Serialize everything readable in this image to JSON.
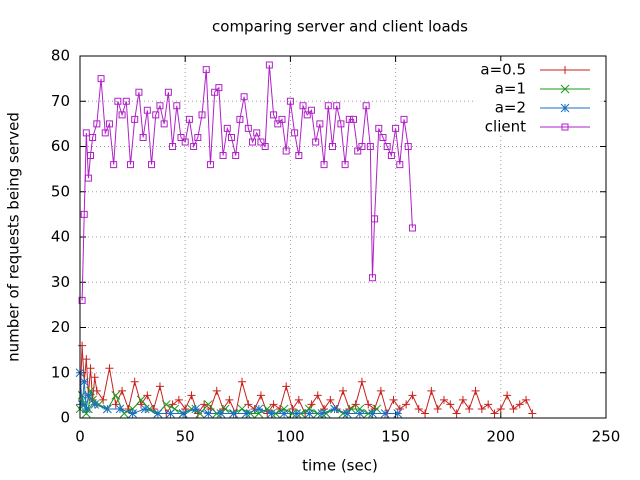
{
  "chart_data": {
    "type": "line",
    "title": "comparing server and client loads",
    "x_label": "time (sec)",
    "y_label": "number of requests being served",
    "xlim": [
      0,
      250
    ],
    "ylim": [
      0,
      80
    ],
    "xticks": [
      0,
      50,
      100,
      150,
      200,
      250
    ],
    "yticks": [
      0,
      10,
      20,
      30,
      40,
      50,
      60,
      70,
      80
    ],
    "grid": true,
    "legend": "top-right",
    "series": [
      {
        "name": "a=0.5",
        "color": "#c8201c",
        "marker": "plus",
        "x": [
          0,
          1,
          2,
          3,
          4,
          5,
          6,
          7,
          8,
          11,
          14,
          17,
          20,
          23,
          26,
          29,
          32,
          35,
          38,
          41,
          44,
          47,
          50,
          53,
          56,
          59,
          62,
          65,
          68,
          71,
          74,
          77,
          80,
          83,
          86,
          89,
          92,
          95,
          98,
          101,
          104,
          107,
          110,
          113,
          116,
          119,
          122,
          125,
          128,
          131,
          134,
          137,
          140,
          143,
          146,
          149,
          152,
          155,
          158,
          161,
          164,
          167,
          170,
          173,
          176,
          179,
          182,
          185,
          188,
          191,
          194,
          197,
          200,
          203,
          206,
          209,
          212,
          215
        ],
        "values": [
          3,
          16,
          8,
          13,
          5,
          11,
          4,
          9,
          6,
          4,
          11,
          3,
          6,
          2,
          8,
          3,
          5,
          2,
          7,
          1,
          3,
          4,
          2,
          5,
          1,
          3,
          2,
          6,
          2,
          4,
          1,
          8,
          3,
          2,
          5,
          1,
          3,
          2,
          7,
          2,
          4,
          1,
          3,
          5,
          2,
          4,
          2,
          6,
          2,
          3,
          8,
          3,
          2,
          6,
          1,
          4,
          2,
          3,
          5,
          2,
          1,
          6,
          2,
          4,
          3,
          1,
          4,
          2,
          6,
          2,
          3,
          1,
          2,
          5,
          2,
          3,
          4,
          1
        ]
      },
      {
        "name": "a=1",
        "color": "#1a9a1a",
        "marker": "cross",
        "x": [
          0,
          1,
          2,
          3,
          4,
          5,
          6,
          9,
          13,
          17,
          21,
          25,
          29,
          33,
          37,
          41,
          45,
          49,
          53,
          57,
          61,
          65,
          69,
          73,
          77,
          81,
          85,
          89,
          93,
          97,
          101,
          105,
          109,
          113,
          117,
          121,
          125,
          129,
          133,
          137,
          141
        ],
        "values": [
          2,
          5,
          3,
          1,
          2,
          6,
          4,
          3,
          2,
          5,
          1,
          2,
          4,
          2,
          1,
          3,
          2,
          1,
          2,
          1,
          3,
          1,
          2,
          1,
          2,
          1,
          1,
          2,
          1,
          2,
          1,
          1,
          2,
          1,
          1,
          2,
          1,
          2,
          2,
          1,
          2
        ]
      },
      {
        "name": "a=2",
        "color": "#1a6fc0",
        "marker": "star",
        "x": [
          0,
          1,
          2,
          3,
          4,
          7,
          13,
          19,
          25,
          31,
          37,
          43,
          49,
          55,
          61,
          67,
          73,
          79,
          85,
          91,
          97,
          103,
          109,
          115,
          121,
          127,
          133,
          139,
          145,
          151
        ],
        "values": [
          10,
          3,
          8,
          2,
          5,
          3,
          2,
          2,
          1,
          2,
          1,
          1,
          1,
          2,
          1,
          1,
          1,
          1,
          2,
          1,
          1,
          1,
          1,
          1,
          2,
          1,
          1,
          1,
          1,
          1
        ]
      },
      {
        "name": "client",
        "color": "#b020c8",
        "marker": "square",
        "x": [
          1,
          2,
          3,
          4,
          5,
          6,
          8,
          10,
          12,
          14,
          16,
          18,
          20,
          22,
          24,
          26,
          28,
          30,
          32,
          34,
          36,
          38,
          40,
          42,
          44,
          46,
          48,
          50,
          52,
          54,
          56,
          58,
          60,
          62,
          64,
          66,
          68,
          70,
          72,
          74,
          76,
          78,
          80,
          82,
          84,
          86,
          88,
          90,
          92,
          94,
          96,
          98,
          100,
          102,
          104,
          106,
          108,
          110,
          112,
          114,
          116,
          118,
          120,
          122,
          124,
          126,
          128,
          130,
          132,
          134,
          136,
          138,
          139,
          140,
          142,
          144,
          146,
          148,
          150,
          152,
          154,
          156,
          158
        ],
        "values": [
          26,
          45,
          63,
          53,
          58,
          62,
          65,
          75,
          63,
          65,
          56,
          70,
          67,
          70,
          56,
          66,
          72,
          62,
          68,
          56,
          67,
          69,
          65,
          72,
          60,
          69,
          62,
          61,
          66,
          60,
          62,
          67,
          77,
          56,
          72,
          73,
          58,
          64,
          62,
          58,
          66,
          71,
          64,
          61,
          63,
          61,
          60,
          78,
          67,
          65,
          66,
          59,
          70,
          63,
          58,
          69,
          67,
          68,
          61,
          65,
          56,
          69,
          60,
          69,
          65,
          56,
          66,
          66,
          59,
          60,
          69,
          60,
          31,
          44,
          64,
          62,
          60,
          58,
          64,
          56,
          66,
          60,
          42
        ]
      }
    ]
  }
}
